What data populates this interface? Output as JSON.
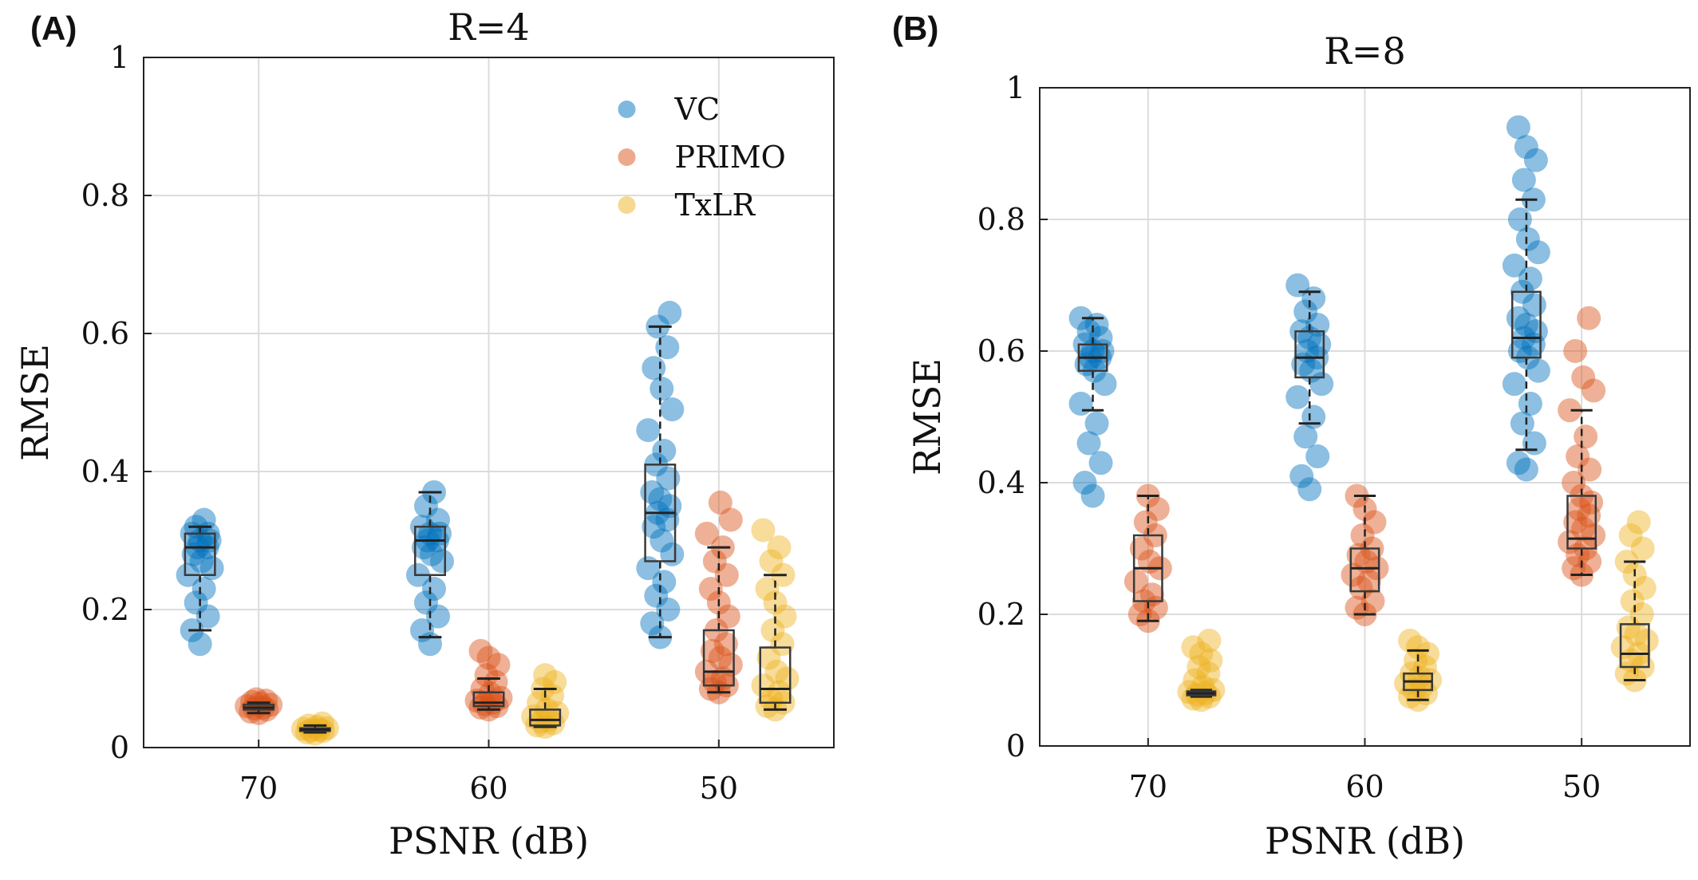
{
  "figure": {
    "panels": [
      {
        "label": "(A)",
        "title": "R=4"
      },
      {
        "label": "(B)",
        "title": "R=8"
      }
    ]
  },
  "chart_data": [
    {
      "type": "scatter",
      "panel_label": "(A)",
      "title": "R=4",
      "xlabel": "PSNR (dB)",
      "ylabel": "RMSE",
      "categories": [
        "70",
        "60",
        "50"
      ],
      "ylim": [
        0,
        1
      ],
      "yticks": [
        "0",
        "0.2",
        "0.4",
        "0.6",
        "0.8",
        "1"
      ],
      "grid": true,
      "legend_position": "top-right",
      "series": [
        {
          "name": "VC",
          "color": "#0072BD",
          "box": [
            {
              "min": 0.17,
              "q1": 0.25,
              "median": 0.29,
              "q3": 0.31,
              "max": 0.32
            },
            {
              "min": 0.16,
              "q1": 0.25,
              "median": 0.3,
              "q3": 0.32,
              "max": 0.37
            },
            {
              "min": 0.16,
              "q1": 0.27,
              "median": 0.34,
              "q3": 0.41,
              "max": 0.61
            }
          ],
          "points": [
            [
              0.15,
              0.17,
              0.19,
              0.21,
              0.23,
              0.25,
              0.26,
              0.27,
              0.28,
              0.29,
              0.29,
              0.3,
              0.3,
              0.31,
              0.31,
              0.32,
              0.33
            ],
            [
              0.15,
              0.17,
              0.19,
              0.21,
              0.23,
              0.25,
              0.27,
              0.28,
              0.29,
              0.3,
              0.3,
              0.31,
              0.31,
              0.32,
              0.33,
              0.35,
              0.37
            ],
            [
              0.16,
              0.18,
              0.2,
              0.22,
              0.24,
              0.26,
              0.28,
              0.3,
              0.32,
              0.33,
              0.34,
              0.35,
              0.36,
              0.37,
              0.39,
              0.41,
              0.43,
              0.46,
              0.49,
              0.52,
              0.55,
              0.58,
              0.61,
              0.63
            ]
          ]
        },
        {
          "name": "PRIMO",
          "color": "#D95319",
          "box": [
            {
              "min": 0.05,
              "q1": 0.055,
              "median": 0.058,
              "q3": 0.062,
              "max": 0.065
            },
            {
              "min": 0.055,
              "q1": 0.06,
              "median": 0.065,
              "q3": 0.08,
              "max": 0.1
            },
            {
              "min": 0.08,
              "q1": 0.09,
              "median": 0.11,
              "q3": 0.17,
              "max": 0.29
            }
          ],
          "points": [
            [
              0.05,
              0.052,
              0.055,
              0.057,
              0.058,
              0.06,
              0.062,
              0.064,
              0.066,
              0.068,
              0.07
            ],
            [
              0.055,
              0.058,
              0.06,
              0.063,
              0.065,
              0.068,
              0.072,
              0.078,
              0.085,
              0.095,
              0.105,
              0.12,
              0.13,
              0.14
            ],
            [
              0.08,
              0.085,
              0.09,
              0.095,
              0.1,
              0.11,
              0.12,
              0.13,
              0.14,
              0.15,
              0.17,
              0.19,
              0.21,
              0.23,
              0.25,
              0.27,
              0.29,
              0.31,
              0.33,
              0.355
            ]
          ]
        },
        {
          "name": "TxLR",
          "color": "#EDB120",
          "box": [
            {
              "min": 0.022,
              "q1": 0.024,
              "median": 0.026,
              "q3": 0.028,
              "max": 0.032
            },
            {
              "min": 0.03,
              "q1": 0.032,
              "median": 0.04,
              "q3": 0.055,
              "max": 0.085
            },
            {
              "min": 0.055,
              "q1": 0.065,
              "median": 0.085,
              "q3": 0.145,
              "max": 0.25
            }
          ],
          "points": [
            [
              0.02,
              0.022,
              0.024,
              0.025,
              0.026,
              0.027,
              0.028,
              0.03,
              0.032,
              0.035
            ],
            [
              0.03,
              0.032,
              0.035,
              0.038,
              0.04,
              0.045,
              0.05,
              0.055,
              0.065,
              0.075,
              0.085,
              0.095,
              0.105
            ],
            [
              0.055,
              0.06,
              0.065,
              0.07,
              0.08,
              0.09,
              0.1,
              0.11,
              0.13,
              0.15,
              0.17,
              0.19,
              0.21,
              0.23,
              0.25,
              0.27,
              0.29,
              0.315
            ]
          ]
        }
      ]
    },
    {
      "type": "scatter",
      "panel_label": "(B)",
      "title": "R=8",
      "xlabel": "PSNR (dB)",
      "ylabel": "RMSE",
      "categories": [
        "70",
        "60",
        "50"
      ],
      "ylim": [
        0,
        1
      ],
      "yticks": [
        "0",
        "0.2",
        "0.4",
        "0.6",
        "0.8",
        "1"
      ],
      "grid": true,
      "legend_position": "none",
      "series": [
        {
          "name": "VC",
          "color": "#0072BD",
          "box": [
            {
              "min": 0.51,
              "q1": 0.57,
              "median": 0.59,
              "q3": 0.61,
              "max": 0.65
            },
            {
              "min": 0.49,
              "q1": 0.56,
              "median": 0.59,
              "q3": 0.63,
              "max": 0.69
            },
            {
              "min": 0.45,
              "q1": 0.59,
              "median": 0.62,
              "q3": 0.69,
              "max": 0.83
            }
          ],
          "points": [
            [
              0.38,
              0.4,
              0.43,
              0.46,
              0.49,
              0.52,
              0.55,
              0.57,
              0.58,
              0.59,
              0.59,
              0.6,
              0.6,
              0.61,
              0.62,
              0.63,
              0.64,
              0.65
            ],
            [
              0.39,
              0.41,
              0.44,
              0.47,
              0.5,
              0.53,
              0.55,
              0.57,
              0.58,
              0.59,
              0.6,
              0.61,
              0.62,
              0.63,
              0.64,
              0.66,
              0.68,
              0.7
            ],
            [
              0.42,
              0.43,
              0.46,
              0.49,
              0.52,
              0.55,
              0.57,
              0.59,
              0.6,
              0.61,
              0.62,
              0.63,
              0.64,
              0.65,
              0.67,
              0.69,
              0.71,
              0.73,
              0.75,
              0.77,
              0.8,
              0.83,
              0.86,
              0.89,
              0.91,
              0.94
            ]
          ]
        },
        {
          "name": "PRIMO",
          "color": "#D95319",
          "box": [
            {
              "min": 0.19,
              "q1": 0.22,
              "median": 0.27,
              "q3": 0.32,
              "max": 0.38
            },
            {
              "min": 0.2,
              "q1": 0.235,
              "median": 0.27,
              "q3": 0.3,
              "max": 0.38
            },
            {
              "min": 0.26,
              "q1": 0.3,
              "median": 0.315,
              "q3": 0.38,
              "max": 0.51
            }
          ],
          "points": [
            [
              0.19,
              0.2,
              0.21,
              0.22,
              0.23,
              0.25,
              0.27,
              0.28,
              0.3,
              0.32,
              0.34,
              0.36,
              0.38
            ],
            [
              0.2,
              0.21,
              0.22,
              0.24,
              0.25,
              0.26,
              0.27,
              0.28,
              0.29,
              0.3,
              0.32,
              0.34,
              0.36,
              0.38
            ],
            [
              0.26,
              0.27,
              0.28,
              0.29,
              0.3,
              0.31,
              0.32,
              0.33,
              0.34,
              0.35,
              0.36,
              0.37,
              0.38,
              0.4,
              0.42,
              0.44,
              0.47,
              0.51,
              0.54,
              0.56,
              0.6,
              0.65
            ]
          ]
        },
        {
          "name": "TxLR",
          "color": "#EDB120",
          "box": [
            {
              "min": 0.075,
              "q1": 0.077,
              "median": 0.08,
              "q3": 0.083,
              "max": 0.085
            },
            {
              "min": 0.07,
              "q1": 0.085,
              "median": 0.098,
              "q3": 0.11,
              "max": 0.145
            },
            {
              "min": 0.1,
              "q1": 0.12,
              "median": 0.14,
              "q3": 0.185,
              "max": 0.28
            }
          ],
          "points": [
            [
              0.07,
              0.072,
              0.075,
              0.078,
              0.08,
              0.082,
              0.085,
              0.09,
              0.1,
              0.11,
              0.12,
              0.13,
              0.14,
              0.15,
              0.16
            ],
            [
              0.07,
              0.075,
              0.08,
              0.085,
              0.09,
              0.095,
              0.1,
              0.105,
              0.11,
              0.12,
              0.13,
              0.14,
              0.15,
              0.16
            ],
            [
              0.1,
              0.11,
              0.12,
              0.13,
              0.14,
              0.15,
              0.16,
              0.17,
              0.18,
              0.2,
              0.22,
              0.24,
              0.26,
              0.28,
              0.3,
              0.32,
              0.34
            ]
          ]
        }
      ]
    }
  ]
}
